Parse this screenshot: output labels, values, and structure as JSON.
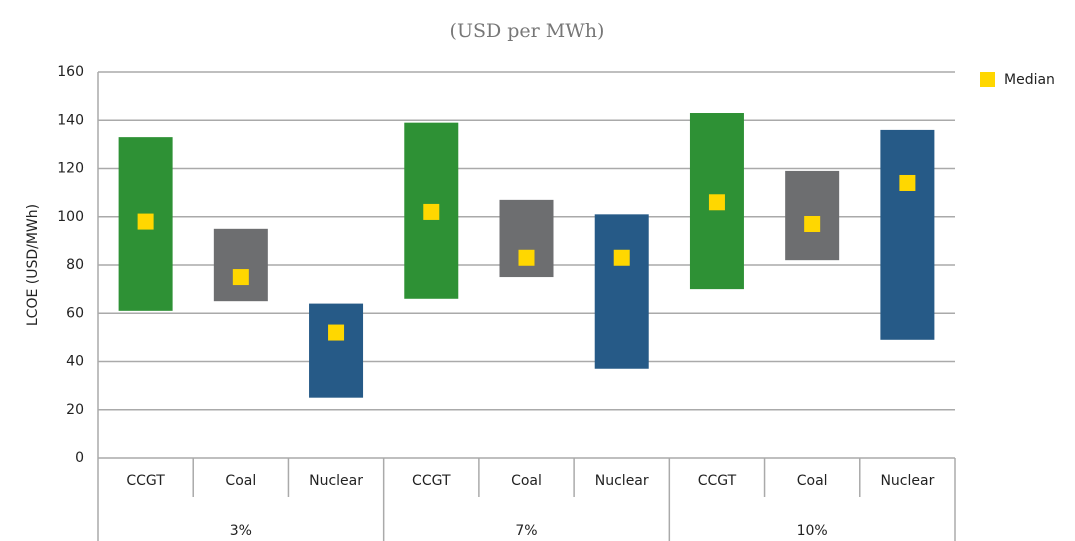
{
  "chart_data": {
    "type": "range-bar",
    "title": "(USD per MWh)",
    "y_label": "LCOE (USD/MWh)",
    "groups": [
      {
        "label": "3%",
        "categories": [
          "CCGT",
          "Coal",
          "Nuclear"
        ]
      },
      {
        "label": "7%",
        "categories": [
          "CCGT",
          "Coal",
          "Nuclear"
        ]
      },
      {
        "label": "10%",
        "categories": [
          "CCGT",
          "Coal",
          "Nuclear"
        ]
      }
    ],
    "bar_colors": [
      "#2e9135",
      "#6d6e70",
      "#265a87"
    ],
    "low": [
      61,
      65,
      25,
      66,
      75,
      37,
      70,
      82,
      49
    ],
    "high": [
      133,
      95,
      64,
      139,
      107,
      101,
      143,
      119,
      136
    ],
    "series": [
      {
        "name": "Median",
        "color": "#ffd700",
        "values": [
          98,
          75,
          52,
          102,
          83,
          83,
          106,
          97,
          114
        ]
      }
    ],
    "ylim": [
      0,
      160
    ],
    "yticks": [
      0,
      20,
      40,
      60,
      80,
      100,
      120,
      140,
      160
    ],
    "grid": true,
    "legend": "right"
  }
}
